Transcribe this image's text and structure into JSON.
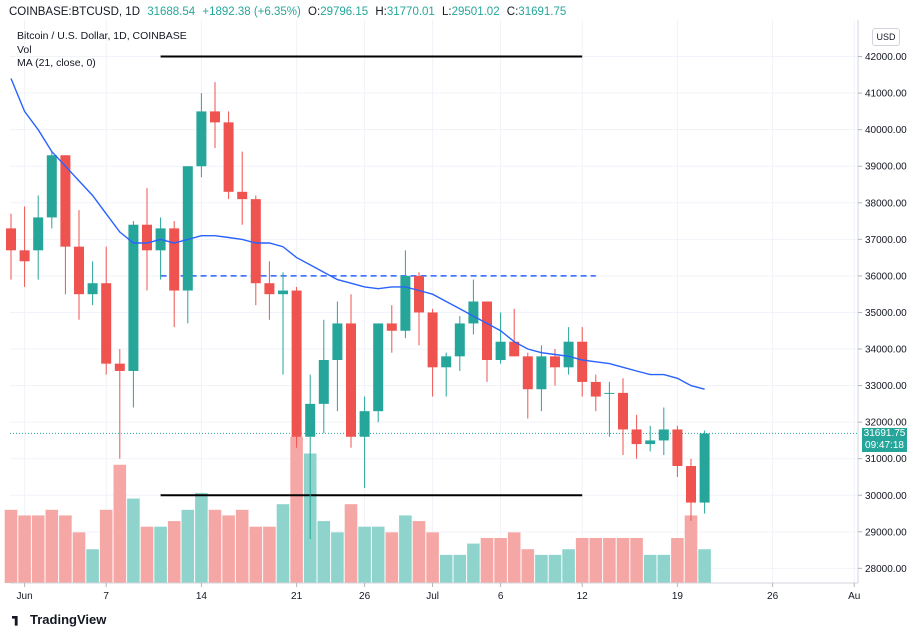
{
  "header": {
    "symbol": "COINBASE:BTCUSD, 1D",
    "last": "31688.54",
    "change": "+1892.38 (+6.35%)",
    "o_label": "O:",
    "o": "29796.15",
    "h_label": "H:",
    "h": "31770.01",
    "l_label": "L:",
    "l": "29501.02",
    "c_label": "C:",
    "c": "31691.75"
  },
  "legend": {
    "title": "Bitcoin / U.S. Dollar, 1D, COINBASE",
    "vol": "Vol",
    "ma": "MA (21, close, 0)"
  },
  "currency_badge": "USD",
  "price_badge": {
    "price": "31691.75",
    "countdown": "09:47:18"
  },
  "branding": "TradingView",
  "colors": {
    "up": "#26a69a",
    "down": "#ef5350",
    "up_vol": "#8fd4cc",
    "down_vol": "#f5a7a5",
    "ma": "#2962ff",
    "grid": "#f0f3fa",
    "text": "#131722"
  },
  "chart_data": {
    "type": "candlestick",
    "y_ticks": [
      "28000.00",
      "29000.00",
      "30000.00",
      "31000.00",
      "32000.00",
      "33000.00",
      "34000.00",
      "35000.00",
      "36000.00",
      "37000.00",
      "38000.00",
      "39000.00",
      "40000.00",
      "41000.00",
      "42000.00"
    ],
    "x_ticks": [
      {
        "label": "Jun",
        "date": "2021-06-01"
      },
      {
        "label": "7",
        "date": "2021-06-07"
      },
      {
        "label": "14",
        "date": "2021-06-14"
      },
      {
        "label": "21",
        "date": "2021-06-21"
      },
      {
        "label": "26",
        "date": "2021-06-26"
      },
      {
        "label": "Jul",
        "date": "2021-07-01"
      },
      {
        "label": "6",
        "date": "2021-07-06"
      },
      {
        "label": "12",
        "date": "2021-07-12"
      },
      {
        "label": "19",
        "date": "2021-07-19"
      },
      {
        "label": "26",
        "date": "2021-07-26"
      },
      {
        "label": "Au",
        "date": "2021-08-01"
      }
    ],
    "ylim": [
      27600,
      43000
    ],
    "candles": [
      {
        "date": "2021-05-31",
        "o": 37300,
        "h": 37700,
        "l": 35900,
        "c": 36700
      },
      {
        "date": "2021-06-01",
        "o": 36700,
        "h": 37900,
        "l": 35700,
        "c": 36400
      },
      {
        "date": "2021-06-02",
        "o": 36700,
        "h": 38200,
        "l": 35900,
        "c": 37600
      },
      {
        "date": "2021-06-03",
        "o": 37600,
        "h": 39400,
        "l": 37300,
        "c": 39300
      },
      {
        "date": "2021-06-04",
        "o": 39300,
        "h": 39300,
        "l": 35500,
        "c": 36800
      },
      {
        "date": "2021-06-05",
        "o": 36800,
        "h": 37800,
        "l": 34800,
        "c": 35500
      },
      {
        "date": "2021-06-06",
        "o": 35500,
        "h": 36400,
        "l": 35200,
        "c": 35800
      },
      {
        "date": "2021-06-07",
        "o": 35800,
        "h": 36800,
        "l": 33300,
        "c": 33600
      },
      {
        "date": "2021-06-08",
        "o": 33600,
        "h": 34000,
        "l": 31000,
        "c": 33400
      },
      {
        "date": "2021-06-09",
        "o": 33400,
        "h": 37500,
        "l": 32400,
        "c": 37400
      },
      {
        "date": "2021-06-10",
        "o": 37400,
        "h": 38400,
        "l": 35600,
        "c": 36700
      },
      {
        "date": "2021-06-11",
        "o": 36700,
        "h": 37600,
        "l": 35900,
        "c": 37300
      },
      {
        "date": "2021-06-12",
        "o": 37300,
        "h": 37500,
        "l": 34600,
        "c": 35600
      },
      {
        "date": "2021-06-13",
        "o": 35600,
        "h": 39000,
        "l": 34700,
        "c": 39000
      },
      {
        "date": "2021-06-14",
        "o": 39000,
        "h": 41000,
        "l": 38700,
        "c": 40500
      },
      {
        "date": "2021-06-15",
        "o": 40500,
        "h": 41300,
        "l": 39500,
        "c": 40200
      },
      {
        "date": "2021-06-16",
        "o": 40200,
        "h": 40500,
        "l": 38100,
        "c": 38300
      },
      {
        "date": "2021-06-17",
        "o": 38300,
        "h": 39400,
        "l": 37400,
        "c": 38100
      },
      {
        "date": "2021-06-18",
        "o": 38100,
        "h": 38200,
        "l": 35200,
        "c": 35800
      },
      {
        "date": "2021-06-19",
        "o": 35800,
        "h": 36400,
        "l": 34800,
        "c": 35500
      },
      {
        "date": "2021-06-20",
        "o": 35500,
        "h": 36100,
        "l": 33300,
        "c": 35600
      },
      {
        "date": "2021-06-21",
        "o": 35600,
        "h": 35700,
        "l": 31300,
        "c": 31600
      },
      {
        "date": "2021-06-22",
        "o": 31600,
        "h": 33300,
        "l": 28800,
        "c": 32500
      },
      {
        "date": "2021-06-23",
        "o": 32500,
        "h": 34800,
        "l": 31700,
        "c": 33700
      },
      {
        "date": "2021-06-24",
        "o": 33700,
        "h": 35300,
        "l": 32300,
        "c": 34700
      },
      {
        "date": "2021-06-25",
        "o": 34700,
        "h": 35500,
        "l": 31300,
        "c": 31600
      },
      {
        "date": "2021-06-26",
        "o": 31600,
        "h": 32700,
        "l": 30200,
        "c": 32300
      },
      {
        "date": "2021-06-27",
        "o": 32300,
        "h": 34700,
        "l": 32000,
        "c": 34700
      },
      {
        "date": "2021-06-28",
        "o": 34700,
        "h": 35200,
        "l": 33900,
        "c": 34500
      },
      {
        "date": "2021-06-29",
        "o": 34500,
        "h": 36700,
        "l": 34300,
        "c": 36000
      },
      {
        "date": "2021-06-30",
        "o": 36000,
        "h": 36100,
        "l": 34100,
        "c": 35000
      },
      {
        "date": "2021-07-01",
        "o": 35000,
        "h": 35100,
        "l": 32700,
        "c": 33500
      },
      {
        "date": "2021-07-02",
        "o": 33500,
        "h": 33900,
        "l": 32700,
        "c": 33800
      },
      {
        "date": "2021-07-03",
        "o": 33800,
        "h": 34900,
        "l": 33400,
        "c": 34700
      },
      {
        "date": "2021-07-04",
        "o": 34700,
        "h": 35900,
        "l": 34400,
        "c": 35300
      },
      {
        "date": "2021-07-05",
        "o": 35300,
        "h": 35300,
        "l": 33100,
        "c": 33700
      },
      {
        "date": "2021-07-06",
        "o": 33700,
        "h": 35000,
        "l": 33600,
        "c": 34200
      },
      {
        "date": "2021-07-07",
        "o": 34200,
        "h": 35100,
        "l": 33800,
        "c": 33800
      },
      {
        "date": "2021-07-08",
        "o": 33800,
        "h": 33900,
        "l": 32100,
        "c": 32900
      },
      {
        "date": "2021-07-09",
        "o": 32900,
        "h": 34100,
        "l": 32300,
        "c": 33800
      },
      {
        "date": "2021-07-10",
        "o": 33800,
        "h": 34000,
        "l": 33000,
        "c": 33500
      },
      {
        "date": "2021-07-11",
        "o": 33500,
        "h": 34600,
        "l": 33300,
        "c": 34200
      },
      {
        "date": "2021-07-12",
        "o": 34200,
        "h": 34600,
        "l": 32700,
        "c": 33100
      },
      {
        "date": "2021-07-13",
        "o": 33100,
        "h": 33300,
        "l": 32300,
        "c": 32700
      },
      {
        "date": "2021-07-14",
        "o": 32800,
        "h": 33100,
        "l": 31600,
        "c": 32800
      },
      {
        "date": "2021-07-15",
        "o": 32800,
        "h": 33200,
        "l": 31100,
        "c": 31800
      },
      {
        "date": "2021-07-16",
        "o": 31800,
        "h": 32200,
        "l": 31000,
        "c": 31400
      },
      {
        "date": "2021-07-17",
        "o": 31400,
        "h": 31900,
        "l": 31200,
        "c": 31500
      },
      {
        "date": "2021-07-18",
        "o": 31500,
        "h": 32400,
        "l": 31100,
        "c": 31800
      },
      {
        "date": "2021-07-19",
        "o": 31800,
        "h": 31900,
        "l": 30500,
        "c": 30800
      },
      {
        "date": "2021-07-20",
        "o": 30800,
        "h": 31000,
        "l": 29300,
        "c": 29800
      },
      {
        "date": "2021-07-21",
        "o": 29800,
        "h": 31770,
        "l": 29500,
        "c": 31690
      }
    ],
    "volume_direction": [
      "down",
      "down",
      "down",
      "down",
      "down",
      "down",
      "up",
      "down",
      "down",
      "up",
      "down",
      "up",
      "down",
      "up",
      "up",
      "down",
      "down",
      "down",
      "down",
      "down",
      "up",
      "down",
      "up",
      "up",
      "up",
      "down",
      "up",
      "up",
      "down",
      "up",
      "down",
      "down",
      "up",
      "up",
      "up",
      "down",
      "down",
      "down",
      "down",
      "up",
      "up",
      "up",
      "down",
      "down",
      "down",
      "down",
      "down",
      "up",
      "up",
      "down",
      "down",
      "up"
    ],
    "volume_relative": [
      0.13,
      0.12,
      0.12,
      0.13,
      0.12,
      0.09,
      0.06,
      0.13,
      0.21,
      0.15,
      0.1,
      0.1,
      0.11,
      0.13,
      0.16,
      0.13,
      0.12,
      0.13,
      0.1,
      0.1,
      0.14,
      0.26,
      0.23,
      0.11,
      0.09,
      0.14,
      0.1,
      0.1,
      0.09,
      0.12,
      0.11,
      0.09,
      0.05,
      0.05,
      0.07,
      0.08,
      0.08,
      0.09,
      0.06,
      0.05,
      0.05,
      0.06,
      0.08,
      0.08,
      0.08,
      0.08,
      0.08,
      0.05,
      0.05,
      0.08,
      0.12,
      0.06
    ],
    "ma21": [
      41400,
      40500,
      40000,
      39400,
      39000,
      38600,
      38200,
      37700,
      37200,
      36900,
      36900,
      37000,
      36900,
      37000,
      37100,
      37100,
      37050,
      37000,
      36900,
      36900,
      36800,
      36500,
      36300,
      36100,
      35900,
      35800,
      35700,
      35650,
      35700,
      35700,
      35600,
      35500,
      35300,
      35100,
      34900,
      34700,
      34500,
      34200,
      34000,
      33900,
      33850,
      33800,
      33700,
      33650,
      33600,
      33500,
      33400,
      33300,
      33300,
      33200,
      33000,
      32900
    ],
    "annotations": [
      {
        "kind": "hline-solid",
        "price": 42000,
        "from": "2021-06-11",
        "to": "2021-07-12"
      },
      {
        "kind": "hline-solid",
        "price": 30000,
        "from": "2021-06-11",
        "to": "2021-07-12"
      },
      {
        "kind": "hline-dashed",
        "price": 36000,
        "from": "2021-06-11",
        "to": "2021-07-13"
      }
    ],
    "last_price": 31691.75
  }
}
